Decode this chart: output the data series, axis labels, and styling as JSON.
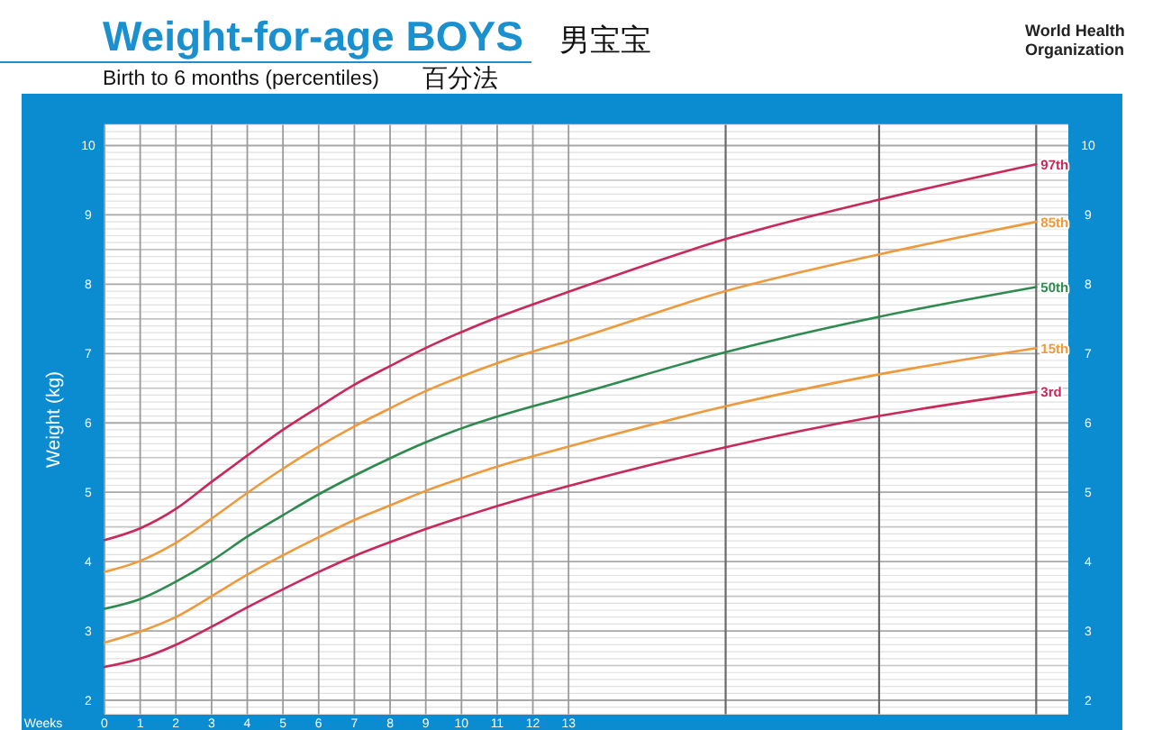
{
  "chart_data": {
    "type": "line",
    "title": "Weight-for-age BOYS",
    "subtitle": "Birth to 6 months (percentiles)",
    "xlabel": "Weeks",
    "ylabel": "Weight (kg)",
    "annotations": [
      "男宝宝",
      "百分法",
      "World Health Organization"
    ],
    "x": [
      0,
      1,
      2,
      3,
      4,
      5,
      6,
      7,
      8,
      9,
      10,
      11,
      12,
      13,
      17.4,
      21.7,
      26.1
    ],
    "series": [
      {
        "name": "97th",
        "color": "#c8285a",
        "values": [
          4.31,
          4.48,
          4.76,
          5.15,
          5.53,
          5.9,
          6.23,
          6.55,
          6.82,
          7.08,
          7.31,
          7.52,
          7.71,
          7.89,
          8.65,
          9.22,
          9.73
        ]
      },
      {
        "name": "85th",
        "color": "#ee9a3c",
        "values": [
          3.85,
          4.01,
          4.27,
          4.62,
          4.99,
          5.34,
          5.66,
          5.95,
          6.21,
          6.46,
          6.67,
          6.86,
          7.03,
          7.18,
          7.9,
          8.43,
          8.9
        ]
      },
      {
        "name": "50th",
        "color": "#2e8a4e",
        "values": [
          3.32,
          3.46,
          3.71,
          4.01,
          4.36,
          4.67,
          4.97,
          5.24,
          5.49,
          5.72,
          5.92,
          6.09,
          6.24,
          6.38,
          7.02,
          7.53,
          7.96
        ]
      },
      {
        "name": "15th",
        "color": "#ee9a3c",
        "values": [
          2.83,
          2.99,
          3.2,
          3.5,
          3.81,
          4.09,
          4.35,
          4.6,
          4.81,
          5.02,
          5.2,
          5.37,
          5.52,
          5.66,
          6.24,
          6.7,
          7.08
        ]
      },
      {
        "name": "3rd",
        "color": "#c8285a",
        "values": [
          2.48,
          2.6,
          2.8,
          3.06,
          3.34,
          3.6,
          3.85,
          4.08,
          4.28,
          4.47,
          4.64,
          4.8,
          4.95,
          5.09,
          5.65,
          6.1,
          6.45
        ]
      }
    ],
    "xlim": [
      0,
      27
    ],
    "xticks": [
      0,
      1,
      2,
      3,
      4,
      5,
      6,
      7,
      8,
      9,
      10,
      11,
      12,
      13,
      {
        "value": 17.4,
        "label": null
      },
      {
        "value": 21.7,
        "label": null
      },
      {
        "value": 26.1,
        "label": null
      }
    ],
    "ylim": [
      1.8,
      10.3
    ],
    "yticks": [
      2,
      3,
      4,
      5,
      6,
      7,
      8,
      9,
      10
    ],
    "y2lim": [
      1.8,
      10.3
    ],
    "y2ticks": [
      2,
      3,
      4,
      5,
      6,
      7,
      8,
      9,
      10
    ],
    "grid": true
  }
}
